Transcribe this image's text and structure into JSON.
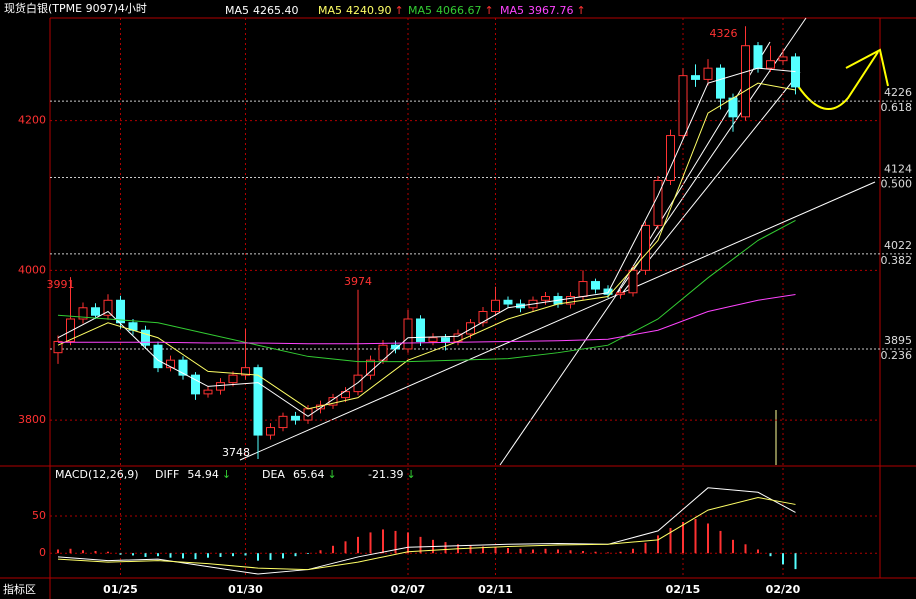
{
  "chart_data": [
    {
      "type": "candlestick",
      "title": "现货白银(TPME 9097)4小时",
      "categories": [
        null,
        null,
        null,
        null,
        null,
        "01/25",
        null,
        null,
        null,
        null,
        null,
        null,
        null,
        null,
        null,
        "01/30",
        null,
        null,
        null,
        null,
        null,
        null,
        null,
        null,
        null,
        null,
        null,
        null,
        "02/07",
        null,
        null,
        null,
        null,
        null,
        null,
        "02/11",
        null,
        null,
        null,
        null,
        null,
        null,
        null,
        null,
        null,
        null,
        null,
        null,
        null,
        null,
        "02/15",
        null,
        null,
        null,
        null,
        null,
        null,
        null,
        "02/20",
        null
      ],
      "open": [
        3890,
        3905,
        3935,
        3950,
        3940,
        3960,
        3930,
        3920,
        3900,
        3870,
        3880,
        3860,
        3835,
        3840,
        3850,
        3860,
        3870,
        3780,
        3790,
        3805,
        3800,
        3815,
        3820,
        3830,
        3838,
        3860,
        3880,
        3900,
        3895,
        3935,
        3905,
        3910,
        3905,
        3915,
        3930,
        3945,
        3960,
        3955,
        3950,
        3960,
        3965,
        3955,
        3965,
        3985,
        3975,
        3968,
        3970,
        4000,
        4060,
        4120,
        4180,
        4260,
        4255,
        4270,
        4230,
        4205,
        4300,
        4270,
        4280,
        4285
      ],
      "high": [
        3913,
        3991,
        3957,
        3956,
        3968,
        3966,
        3935,
        3926,
        3905,
        3886,
        3885,
        3864,
        3845,
        3856,
        3865,
        3922,
        3874,
        3796,
        3810,
        3811,
        3820,
        3826,
        3835,
        3844,
        3974,
        3886,
        3907,
        3906,
        3947,
        3940,
        3916,
        3915,
        3921,
        3935,
        3951,
        3978,
        3965,
        3961,
        3965,
        3971,
        3970,
        3971,
        4000,
        3989,
        3980,
        3976,
        4006,
        4065,
        4126,
        4188,
        4270,
        4275,
        4282,
        4275,
        4236,
        4326,
        4305,
        4300,
        4295,
        4290
      ],
      "low": [
        3875,
        3900,
        3929,
        3935,
        3934,
        3922,
        3914,
        3895,
        3864,
        3865,
        3854,
        3827,
        3830,
        3834,
        3845,
        3854,
        3748,
        3774,
        3785,
        3794,
        3795,
        3809,
        3815,
        3824,
        3833,
        3854,
        3875,
        3889,
        3890,
        3899,
        3900,
        3893,
        3900,
        3909,
        3925,
        3939,
        3950,
        3944,
        3945,
        3954,
        3950,
        3949,
        3960,
        3969,
        3963,
        3962,
        3965,
        3994,
        4055,
        4114,
        4175,
        4245,
        4247,
        4215,
        4185,
        4200,
        4264,
        4265,
        4274,
        4235
      ],
      "close": [
        3905,
        3935,
        3950,
        3940,
        3960,
        3930,
        3920,
        3900,
        3870,
        3880,
        3860,
        3835,
        3840,
        3850,
        3860,
        3870,
        3780,
        3790,
        3805,
        3800,
        3815,
        3820,
        3830,
        3838,
        3860,
        3880,
        3900,
        3895,
        3935,
        3905,
        3910,
        3905,
        3915,
        3930,
        3945,
        3960,
        3955,
        3950,
        3960,
        3965,
        3955,
        3965,
        3985,
        3975,
        3968,
        3970,
        4000,
        4060,
        4120,
        4180,
        4260,
        4255,
        4270,
        4230,
        4205,
        4300,
        4270,
        4280,
        4285,
        4245
      ],
      "up_color": "#ff3232",
      "down_color": "#54ffff",
      "ylim": [
        3740,
        4337
      ],
      "yticks": [
        3800,
        4000,
        4200
      ],
      "grid": true,
      "series": [
        {
          "name": "MA5",
          "color": "#ffffff",
          "x": [
            0,
            4,
            8,
            12,
            16,
            20,
            24,
            28,
            32,
            36,
            40,
            44,
            48,
            52,
            56,
            59
          ],
          "values": [
            3910,
            3945,
            3880,
            3845,
            3850,
            3805,
            3850,
            3910,
            3912,
            3950,
            3960,
            3970,
            4100,
            4250,
            4270,
            4265.4
          ],
          "value_labels": [
            null,
            null,
            null,
            null,
            null,
            null,
            null,
            null,
            null,
            null,
            null,
            null,
            null,
            null,
            null,
            "4265.40"
          ]
        },
        {
          "name": "MA5",
          "color": "#ffff66",
          "arrow": "↑",
          "x": [
            0,
            4,
            8,
            12,
            16,
            20,
            24,
            28,
            32,
            36,
            40,
            44,
            48,
            52,
            56,
            59
          ],
          "values": [
            3900,
            3930,
            3910,
            3865,
            3860,
            3815,
            3830,
            3880,
            3905,
            3935,
            3955,
            3965,
            4040,
            4210,
            4250,
            4240.9
          ],
          "value_labels": [
            null,
            null,
            null,
            null,
            null,
            null,
            null,
            null,
            null,
            null,
            null,
            null,
            null,
            null,
            null,
            "4240.90"
          ]
        },
        {
          "name": "MA5",
          "color": "#33cc33",
          "arrow": "↑",
          "x": [
            0,
            4,
            8,
            12,
            16,
            20,
            24,
            28,
            32,
            36,
            40,
            44,
            48,
            52,
            56,
            59
          ],
          "values": [
            3940,
            3935,
            3930,
            3915,
            3900,
            3885,
            3878,
            3878,
            3880,
            3882,
            3890,
            3900,
            3935,
            3990,
            4040,
            4066.67
          ]
        },
        {
          "name": "MA5",
          "color": "#ff44ff",
          "arrow": "↑",
          "x": [
            0,
            4,
            8,
            12,
            16,
            20,
            24,
            28,
            32,
            36,
            40,
            44,
            48,
            52,
            56,
            59
          ],
          "values": [
            3904,
            3904,
            3904,
            3903,
            3903,
            3902,
            3902,
            3903,
            3904,
            3905,
            3906,
            3908,
            3920,
            3945,
            3960,
            3967.76
          ]
        }
      ],
      "fib_levels": [
        {
          "price": 4226,
          "ratio": 0.618
        },
        {
          "price": 4124,
          "ratio": 0.5
        },
        {
          "price": 4022,
          "ratio": 0.382
        },
        {
          "price": 3895,
          "ratio": 0.236
        }
      ],
      "fib_ratio_labels": [
        "0.618",
        "0.500",
        "0.382",
        "0.236"
      ]
    },
    {
      "type": "macd",
      "title": "MACD(12,26,9)",
      "hist": [
        5,
        6,
        4,
        3,
        2,
        -2,
        -3,
        -5,
        -4,
        -6,
        -7,
        -8,
        -6,
        -5,
        -4,
        -3,
        -10,
        -9,
        -7,
        -4,
        -1,
        4,
        10,
        16,
        22,
        28,
        32,
        30,
        28,
        22,
        18,
        15,
        12,
        10,
        9,
        8,
        7,
        6,
        5,
        6,
        5,
        4,
        3,
        2,
        1,
        2,
        6,
        14,
        24,
        34,
        42,
        46,
        40,
        30,
        18,
        12,
        5,
        -4,
        -15,
        -21.39
      ],
      "hist_arrow": "↓",
      "pos_color": "#ff3232",
      "neg_color": "#54ffff",
      "ylim": [
        -32,
        116
      ],
      "yticks": [
        0,
        50
      ],
      "series": [
        {
          "name": "DIFF",
          "color": "#ffffff",
          "arrow": "↓",
          "x": [
            0,
            4,
            8,
            12,
            16,
            20,
            24,
            28,
            32,
            36,
            40,
            44,
            48,
            52,
            56,
            59
          ],
          "values": [
            -5,
            -10,
            -8,
            -18,
            -28,
            -22,
            -5,
            8,
            10,
            12,
            13,
            12,
            30,
            88,
            82,
            54.94
          ]
        },
        {
          "name": "DEA",
          "color": "#ffff66",
          "arrow": "↓",
          "x": [
            0,
            4,
            8,
            12,
            16,
            20,
            24,
            28,
            32,
            36,
            40,
            44,
            48,
            52,
            56,
            59
          ],
          "values": [
            -8,
            -12,
            -10,
            -14,
            -20,
            -22,
            -12,
            2,
            6,
            9,
            11,
            12,
            18,
            58,
            75,
            65.64
          ]
        }
      ]
    }
  ],
  "footer": {
    "tab": "指标区"
  }
}
